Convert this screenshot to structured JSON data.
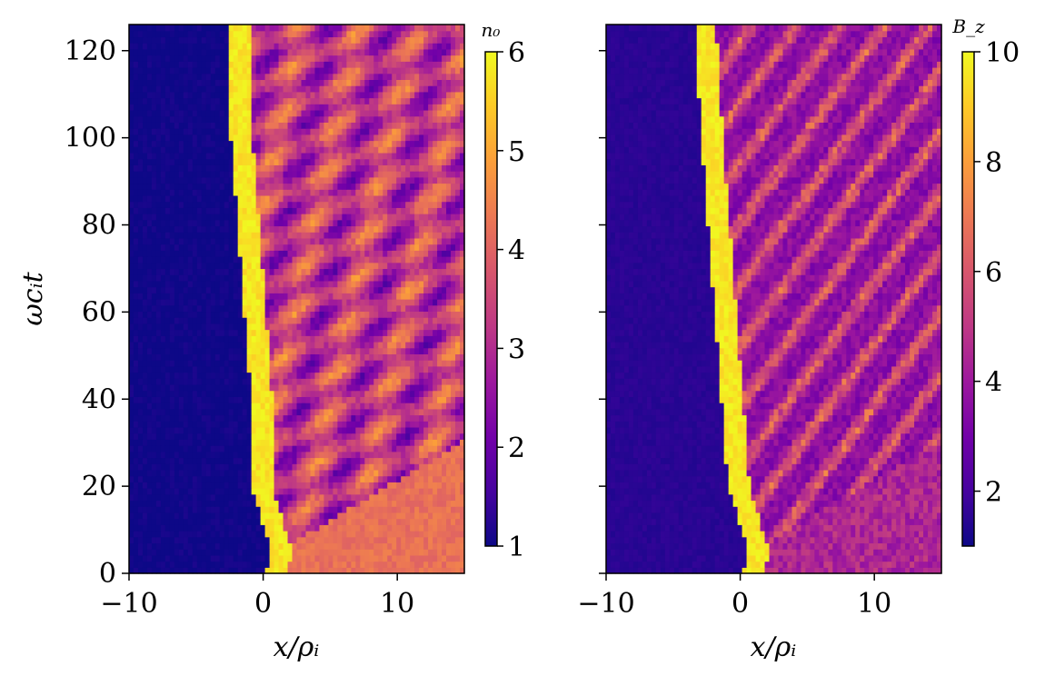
{
  "chart_data": [
    {
      "type": "heatmap",
      "panel": "left",
      "quantity": "n₀",
      "colorbar_label": "n₀",
      "xlabel": "x/ρᵢ",
      "ylabel": "ωcᵢt",
      "xlim": [
        -10,
        15
      ],
      "ylim": [
        0,
        126
      ],
      "xticks": [
        -10,
        0,
        10
      ],
      "xtick_labels": [
        "−10",
        "0",
        "10"
      ],
      "yticks": [
        0,
        20,
        40,
        60,
        80,
        100,
        120
      ],
      "ytick_labels": [
        "0",
        "20",
        "40",
        "60",
        "80",
        "100",
        "120"
      ],
      "colormap": "plasma",
      "clim": [
        1,
        6
      ],
      "cbar_ticks": [
        1,
        2,
        3,
        4,
        5,
        6
      ],
      "cbar_tick_labels": [
        "1",
        "2",
        "3",
        "4",
        "5",
        "6"
      ],
      "features": {
        "front_x_at_t": [
          [
            0,
            0.5
          ],
          [
            5,
            1.0
          ],
          [
            20,
            -0.5
          ],
          [
            40,
            -0.5
          ],
          [
            60,
            -1.0
          ],
          [
            80,
            -1.5
          ],
          [
            100,
            -2.0
          ],
          [
            126,
            -2.0
          ]
        ],
        "upstream_level": 1.0,
        "downstream_level": 4.2
      }
    },
    {
      "type": "heatmap",
      "panel": "right",
      "quantity": "B_z",
      "colorbar_label": "B_z",
      "xlabel": "x/ρᵢ",
      "ylabel": "",
      "xlim": [
        -10,
        15
      ],
      "ylim": [
        0,
        126
      ],
      "xticks": [
        -10,
        0,
        10
      ],
      "xtick_labels": [
        "−10",
        "0",
        "10"
      ],
      "yticks": [
        0,
        20,
        40,
        60,
        80,
        100,
        120
      ],
      "ytick_labels": [],
      "colormap": "plasma",
      "clim": [
        1,
        10
      ],
      "cbar_ticks": [
        2,
        4,
        6,
        8,
        10
      ],
      "cbar_tick_labels": [
        "2",
        "4",
        "6",
        "8",
        "10"
      ],
      "features": {
        "front_x_at_t": [
          [
            0,
            0.5
          ],
          [
            5,
            1.0
          ],
          [
            20,
            -0.5
          ],
          [
            40,
            -1.0
          ],
          [
            60,
            -1.5
          ],
          [
            80,
            -2.0
          ],
          [
            100,
            -2.5
          ],
          [
            126,
            -3.0
          ]
        ],
        "upstream_level": 1.5,
        "downstream_level": 4.5
      }
    }
  ],
  "colors": {
    "plasma_stops": [
      "#0d0887",
      "#46039f",
      "#7201a8",
      "#9c179e",
      "#bd3786",
      "#d8576b",
      "#ed7953",
      "#fb9f3a",
      "#fdca26",
      "#f0f921"
    ]
  }
}
